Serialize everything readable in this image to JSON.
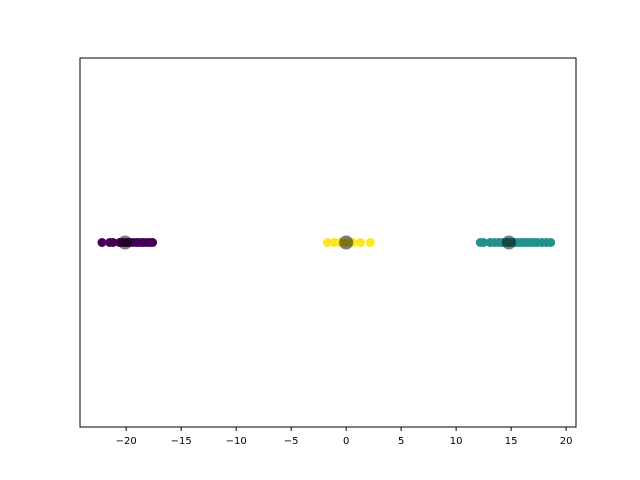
{
  "chart_data": {
    "type": "scatter",
    "title": "",
    "xlabel": "",
    "ylabel": "",
    "xlim": [
      -24.2,
      20.9
    ],
    "ylim": [
      -0.055,
      0.055
    ],
    "show_yticks": false,
    "grid": false,
    "x_ticks": [
      {
        "value": -20,
        "label": "−20"
      },
      {
        "value": -15,
        "label": "−15"
      },
      {
        "value": -10,
        "label": "−10"
      },
      {
        "value": -5,
        "label": "−5"
      },
      {
        "value": 0,
        "label": "0"
      },
      {
        "value": 5,
        "label": "5"
      },
      {
        "value": 10,
        "label": "10"
      },
      {
        "value": 15,
        "label": "15"
      },
      {
        "value": 20,
        "label": "20"
      }
    ],
    "series": [
      {
        "color": "#440154",
        "points_x": [
          -22.2,
          -21.5,
          -21.2,
          -20.6,
          -20.3,
          -20.0,
          -19.7,
          -19.4,
          -19.1,
          -18.9,
          -18.6,
          -18.4,
          -18.1,
          -17.8,
          -17.6
        ],
        "points_y": [
          0,
          0,
          0,
          0,
          0,
          0,
          0,
          0,
          0,
          0,
          0,
          0,
          0,
          0,
          0
        ]
      },
      {
        "color": "#21918c",
        "points_x": [
          12.2,
          12.5,
          13.1,
          13.5,
          13.9,
          14.2,
          14.6,
          14.9,
          15.3,
          15.6,
          15.9,
          16.2,
          16.5,
          16.8,
          17.1,
          17.4,
          17.8,
          18.2,
          18.6
        ],
        "points_y": [
          0,
          0,
          0,
          0,
          0,
          0,
          0,
          0,
          0,
          0,
          0,
          0,
          0,
          0,
          0,
          0,
          0,
          0,
          0
        ]
      },
      {
        "color": "#fde725",
        "points_x": [
          -1.7,
          -1.1,
          -0.6,
          0.0,
          0.6,
          1.3,
          2.2
        ],
        "points_y": [
          0,
          0,
          0,
          0,
          0,
          0,
          0
        ]
      }
    ],
    "centers": {
      "color": "#000000",
      "alpha": 0.5,
      "points_x": [
        -20.1,
        14.8,
        0.0
      ],
      "points_y": [
        0,
        0,
        0
      ]
    }
  }
}
